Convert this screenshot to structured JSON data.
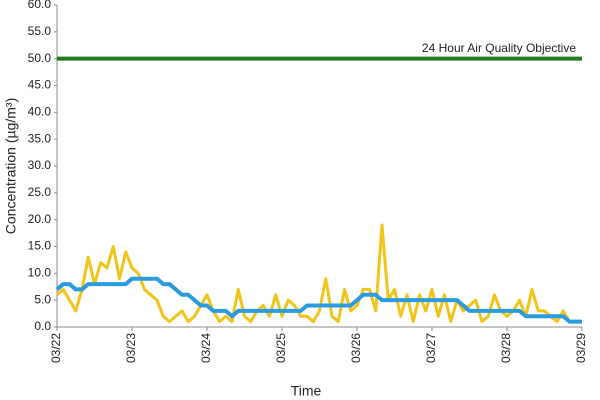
{
  "chart_data": {
    "type": "line",
    "ylabel": "Concentration (µg/m³)",
    "xlabel": "Time",
    "x": [
      0,
      2,
      4,
      6,
      8,
      10,
      12,
      14,
      16,
      18,
      20,
      22,
      24,
      26,
      28,
      30,
      32,
      34,
      36,
      38,
      40,
      42,
      44,
      46,
      48,
      50,
      52,
      54,
      56,
      58,
      60,
      62,
      64,
      66,
      68,
      70,
      72,
      74,
      76,
      78,
      80,
      82,
      84,
      86,
      88,
      90,
      92,
      94,
      96,
      98,
      100,
      102,
      104,
      106,
      108,
      110,
      112,
      114,
      116,
      118,
      120,
      122,
      124,
      126,
      128,
      130,
      132,
      134,
      136,
      138,
      140,
      142,
      144,
      146,
      148,
      150,
      152,
      154,
      156,
      158,
      160,
      162,
      164,
      166,
      168
    ],
    "series": [
      {
        "color": "#f0c419",
        "values": [
          6,
          7,
          5,
          3,
          7,
          13,
          8,
          12,
          11,
          15,
          9,
          14,
          11,
          10,
          7,
          6,
          5,
          2,
          1,
          2,
          3,
          1,
          2,
          4,
          6,
          3,
          1,
          2,
          1,
          7,
          2,
          1,
          3,
          4,
          2,
          6,
          2,
          5,
          4,
          2,
          2,
          1,
          3,
          9,
          2,
          1,
          7,
          3,
          4,
          7,
          7,
          3,
          19,
          5,
          7,
          2,
          6,
          1,
          6,
          3,
          7,
          2,
          6,
          1,
          5,
          3,
          4,
          5,
          1,
          2,
          6,
          3,
          2,
          3,
          5,
          2,
          7,
          3,
          3,
          2,
          1,
          3,
          1,
          1,
          1
        ]
      },
      {
        "color": "#2b9be0",
        "values": [
          7,
          8,
          8,
          7,
          7,
          8,
          8,
          8,
          8,
          8,
          8,
          8,
          9,
          9,
          9,
          9,
          9,
          8,
          8,
          7,
          6,
          6,
          5,
          4,
          4,
          3,
          3,
          3,
          2,
          3,
          3,
          3,
          3,
          3,
          3,
          3,
          3,
          3,
          3,
          3,
          4,
          4,
          4,
          4,
          4,
          4,
          4,
          4,
          5,
          6,
          6,
          6,
          5,
          5,
          5,
          5,
          5,
          5,
          5,
          5,
          5,
          5,
          5,
          5,
          5,
          4,
          3,
          3,
          3,
          3,
          3,
          3,
          3,
          3,
          3,
          2,
          2,
          2,
          2,
          2,
          2,
          2,
          1,
          1,
          1
        ]
      }
    ],
    "objective": {
      "label": "24 Hour Air Quality Objective",
      "value": 50,
      "color": "#1e7b1e"
    },
    "xlim": [
      0,
      168
    ],
    "xticks": [
      {
        "value": 0,
        "label": "03/22"
      },
      {
        "value": 24,
        "label": "03/23"
      },
      {
        "value": 48,
        "label": "03/24"
      },
      {
        "value": 72,
        "label": "03/25"
      },
      {
        "value": 96,
        "label": "03/26"
      },
      {
        "value": 120,
        "label": "03/27"
      },
      {
        "value": 144,
        "label": "03/28"
      },
      {
        "value": 168,
        "label": "03/29"
      }
    ],
    "ylim": [
      0,
      60
    ],
    "yticks": [
      {
        "value": 0,
        "label": "0.0"
      },
      {
        "value": 5,
        "label": "5.0"
      },
      {
        "value": 10,
        "label": "10.0"
      },
      {
        "value": 15,
        "label": "15.0"
      },
      {
        "value": 20,
        "label": "20.0"
      },
      {
        "value": 25,
        "label": "25.0"
      },
      {
        "value": 30,
        "label": "30.0"
      },
      {
        "value": 35,
        "label": "35.0"
      },
      {
        "value": 40,
        "label": "40.0"
      },
      {
        "value": 45,
        "label": "45.0"
      },
      {
        "value": 50,
        "label": "50.0"
      },
      {
        "value": 55,
        "label": "55.0"
      },
      {
        "value": 60,
        "label": "60.0"
      }
    ]
  }
}
